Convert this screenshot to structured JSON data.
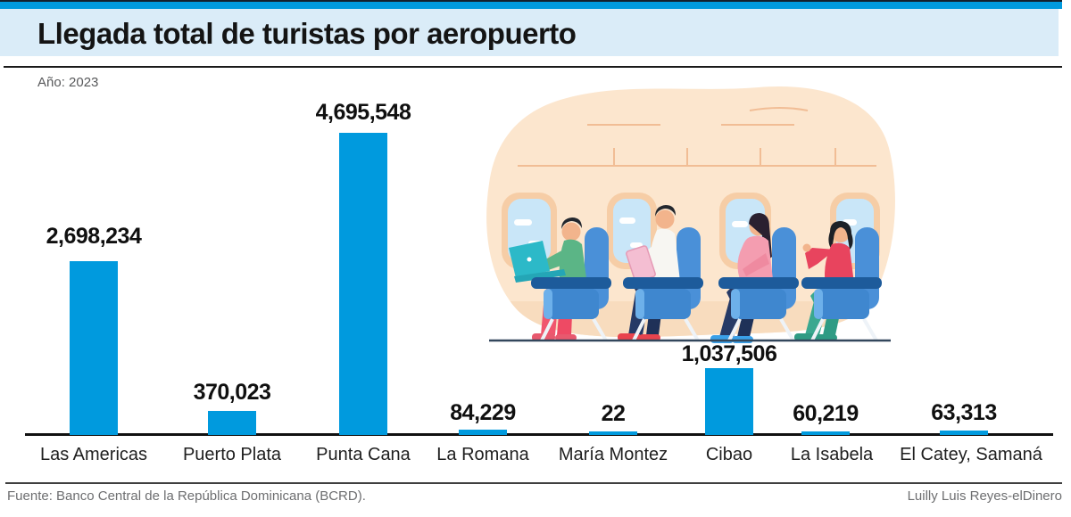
{
  "header": {
    "title": "Llegada total de turistas por aeropuerto",
    "subtitle": "Año: 2023"
  },
  "chart_data": {
    "type": "bar",
    "title": "Llegada total de turistas por aeropuerto",
    "subtitle": "Año: 2023",
    "categories": [
      "Las Americas",
      "Puerto Plata",
      "Punta Cana",
      "La Romana",
      "María Montez",
      "Cibao",
      "La Isabela",
      "El Catey, Samaná"
    ],
    "values": [
      2698234,
      370023,
      4695548,
      84229,
      22,
      1037506,
      60219,
      63313
    ],
    "value_labels": [
      "2,698,234",
      "370,023",
      "4,695,548",
      "84,229",
      "22",
      "1,037,506",
      "60,219",
      "63,313"
    ],
    "bar_color": "#009ade",
    "ylim": [
      0,
      4695548
    ],
    "grid": false,
    "legend": "none",
    "xlabel": "",
    "ylabel": ""
  },
  "footer": {
    "source": "Fuente: Banco Central de la República Dominicana (BCRD).",
    "credit": "Luilly Luis Reyes-elDinero"
  },
  "colors": {
    "accent_blue": "#009ade",
    "header_bg": "#daecf8",
    "top_line": "#14202c",
    "text_dark": "#141414",
    "text_gray": "#58595b"
  },
  "illustration": {
    "name": "airplane-cabin-passengers",
    "blob_color": "#fce6ce",
    "seat_color": "#3f87cf",
    "window_sky": "#c9e6f8"
  }
}
